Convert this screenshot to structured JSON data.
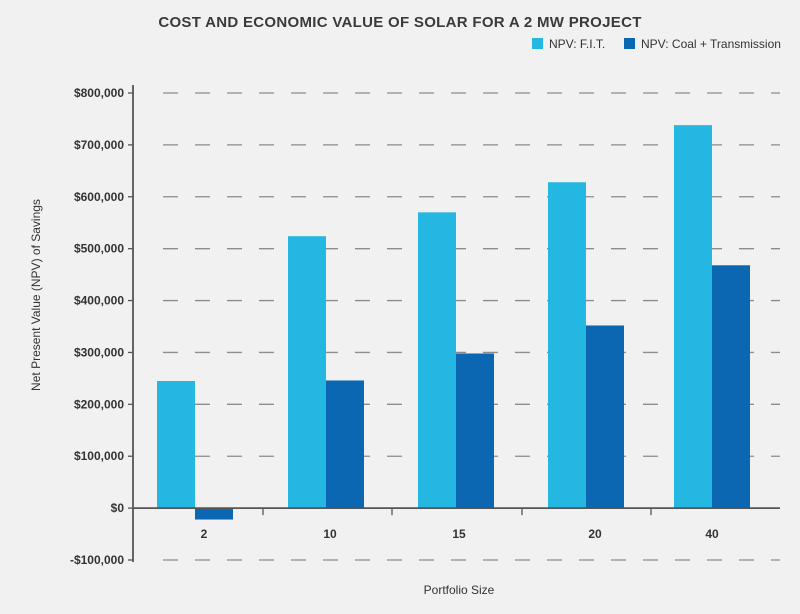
{
  "chart_data": {
    "type": "bar",
    "title": "COST AND ECONOMIC VALUE OF SOLAR FOR A 2 MW PROJECT",
    "xlabel": "Portfolio Size",
    "ylabel": "Net Present Value (NPV) of Savings",
    "categories": [
      "2",
      "10",
      "15",
      "20",
      "40"
    ],
    "series": [
      {
        "name": "NPV: F.I.T.",
        "color": "#23b7e1",
        "values": [
          245000,
          524000,
          570000,
          628000,
          738000
        ]
      },
      {
        "name": "NPV: Coal + Transmission",
        "color": "#0b67b2",
        "values": [
          -22000,
          246000,
          298000,
          352000,
          468000
        ]
      }
    ],
    "ylim": [
      -100000,
      800000
    ],
    "yticks": [
      -100000,
      0,
      100000,
      200000,
      300000,
      400000,
      500000,
      600000,
      700000,
      800000
    ],
    "ytick_labels": [
      "-$100,000",
      "$0",
      "$100,000",
      "$200,000",
      "$300,000",
      "$400,000",
      "$500,000",
      "$600,000",
      "$700,000",
      "$800,000"
    ],
    "grid": true,
    "legend_position": "top-right"
  }
}
